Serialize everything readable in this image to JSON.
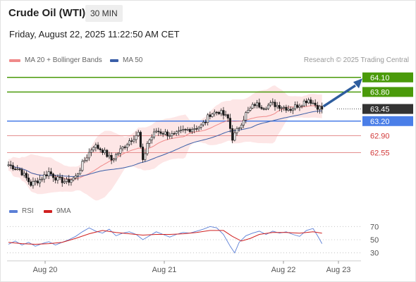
{
  "header": {
    "instrument": "Crude Oil (WTI)",
    "interval": "30 MIN",
    "datetime": "Friday, August 22, 2025 11:22:50 AM CET"
  },
  "legend": {
    "ma20_label": "MA 20 + Bollinger Bands",
    "ma50_label": "MA 50",
    "source": "Research © 2025 Trading Central"
  },
  "colors": {
    "ma20": "#f08a8a",
    "ma50": "#3b5fa8",
    "bands_fill": "#fde3e3",
    "resistance": "#4a9a0a",
    "support": "#4a7ee8",
    "pivot_red": "#e58f8f",
    "current": "#333333",
    "arrow": "#2e5d9e",
    "rsi": "#5b7fd6",
    "rsi_ma": "#d02020"
  },
  "chart_data": [
    {
      "type": "line",
      "name": "price-chart",
      "x_ticks": [
        "Aug 20",
        "Aug 21",
        "Aug 22",
        "Aug 23"
      ],
      "ylim": [
        61.6,
        64.3
      ],
      "levels": [
        {
          "value": 64.1,
          "label": "64.10",
          "kind": "resistance"
        },
        {
          "value": 63.8,
          "label": "63.80",
          "kind": "resistance"
        },
        {
          "value": 63.45,
          "label": "63.45",
          "kind": "current"
        },
        {
          "value": 63.2,
          "label": "63.20",
          "kind": "support"
        },
        {
          "value": 62.9,
          "label": "62.90",
          "kind": "pivot"
        },
        {
          "value": 62.55,
          "label": "62.55",
          "kind": "pivot"
        }
      ],
      "close_path": [
        [
          0,
          62.3
        ],
        [
          5,
          62.2
        ],
        [
          10,
          61.9
        ],
        [
          14,
          62.0
        ],
        [
          18,
          62.15
        ],
        [
          22,
          62.0
        ],
        [
          26,
          61.95
        ],
        [
          30,
          62.05
        ],
        [
          34,
          62.4
        ],
        [
          38,
          62.7
        ],
        [
          42,
          62.6
        ],
        [
          46,
          62.4
        ],
        [
          50,
          62.6
        ],
        [
          54,
          62.8
        ],
        [
          58,
          62.95
        ],
        [
          60,
          62.35
        ],
        [
          62,
          62.75
        ],
        [
          66,
          63.0
        ],
        [
          70,
          62.95
        ],
        [
          74,
          62.9
        ],
        [
          78,
          63.0
        ],
        [
          82,
          63.05
        ],
        [
          86,
          63.1
        ],
        [
          88,
          63.2
        ],
        [
          90,
          63.35
        ],
        [
          94,
          63.4
        ],
        [
          98,
          63.25
        ],
        [
          100,
          62.85
        ],
        [
          102,
          63.0
        ],
        [
          106,
          63.35
        ],
        [
          110,
          63.55
        ],
        [
          114,
          63.5
        ],
        [
          118,
          63.55
        ],
        [
          122,
          63.5
        ],
        [
          126,
          63.45
        ],
        [
          130,
          63.55
        ],
        [
          134,
          63.65
        ],
        [
          138,
          63.5
        ],
        [
          140,
          63.45
        ]
      ],
      "xlim": [
        0,
        153
      ]
    },
    {
      "type": "line",
      "name": "rsi-chart",
      "series": [
        {
          "name": "RSI"
        },
        {
          "name": "9MA"
        }
      ],
      "y_ticks": [
        70,
        50,
        30
      ],
      "ylim": [
        20,
        80
      ],
      "rsi": [
        [
          0,
          43
        ],
        [
          3,
          48
        ],
        [
          6,
          42
        ],
        [
          9,
          46
        ],
        [
          12,
          40
        ],
        [
          15,
          44
        ],
        [
          18,
          47
        ],
        [
          21,
          42
        ],
        [
          24,
          46
        ],
        [
          27,
          50
        ],
        [
          30,
          55
        ],
        [
          33,
          62
        ],
        [
          36,
          68
        ],
        [
          39,
          63
        ],
        [
          42,
          60
        ],
        [
          45,
          66
        ],
        [
          48,
          56
        ],
        [
          51,
          60
        ],
        [
          54,
          62
        ],
        [
          57,
          58
        ],
        [
          60,
          50
        ],
        [
          63,
          56
        ],
        [
          66,
          62
        ],
        [
          69,
          58
        ],
        [
          72,
          54
        ],
        [
          75,
          58
        ],
        [
          78,
          61
        ],
        [
          81,
          60
        ],
        [
          84,
          63
        ],
        [
          87,
          66
        ],
        [
          90,
          70
        ],
        [
          93,
          68
        ],
        [
          96,
          58
        ],
        [
          99,
          40
        ],
        [
          101,
          30
        ],
        [
          103,
          46
        ],
        [
          106,
          56
        ],
        [
          109,
          60
        ],
        [
          112,
          63
        ],
        [
          115,
          58
        ],
        [
          118,
          63
        ],
        [
          121,
          60
        ],
        [
          124,
          62
        ],
        [
          127,
          58
        ],
        [
          130,
          55
        ],
        [
          133,
          64
        ],
        [
          136,
          67
        ],
        [
          138,
          56
        ],
        [
          140,
          44
        ]
      ],
      "ma": [
        [
          0,
          46
        ],
        [
          6,
          44
        ],
        [
          12,
          43
        ],
        [
          18,
          44
        ],
        [
          24,
          46
        ],
        [
          30,
          52
        ],
        [
          36,
          59
        ],
        [
          42,
          64
        ],
        [
          48,
          61
        ],
        [
          54,
          59
        ],
        [
          60,
          57
        ],
        [
          66,
          58
        ],
        [
          72,
          58
        ],
        [
          78,
          59
        ],
        [
          84,
          61
        ],
        [
          90,
          64
        ],
        [
          96,
          64
        ],
        [
          100,
          55
        ],
        [
          104,
          48
        ],
        [
          108,
          52
        ],
        [
          112,
          58
        ],
        [
          118,
          61
        ],
        [
          124,
          61
        ],
        [
          130,
          60
        ],
        [
          136,
          62
        ],
        [
          140,
          60
        ]
      ]
    }
  ]
}
